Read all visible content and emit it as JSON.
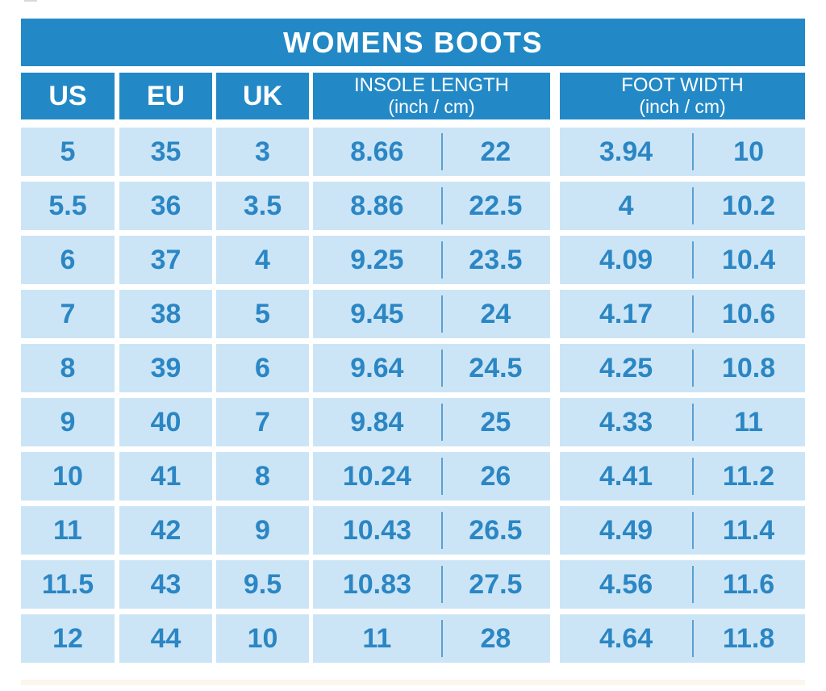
{
  "title": "WOMENS BOOTS",
  "columns": {
    "us": "US",
    "eu": "EU",
    "uk": "UK",
    "insole": {
      "label": "INSOLE LENGTH",
      "unit": "(inch / cm)"
    },
    "foot": {
      "label": "FOOT WIDTH",
      "unit": "(inch / cm)"
    }
  },
  "rows": [
    {
      "us": "5",
      "eu": "35",
      "uk": "3",
      "insole_inch": "8.66",
      "insole_cm": "22",
      "width_inch": "3.94",
      "width_cm": "10"
    },
    {
      "us": "5.5",
      "eu": "36",
      "uk": "3.5",
      "insole_inch": "8.86",
      "insole_cm": "22.5",
      "width_inch": "4",
      "width_cm": "10.2"
    },
    {
      "us": "6",
      "eu": "37",
      "uk": "4",
      "insole_inch": "9.25",
      "insole_cm": "23.5",
      "width_inch": "4.09",
      "width_cm": "10.4"
    },
    {
      "us": "7",
      "eu": "38",
      "uk": "5",
      "insole_inch": "9.45",
      "insole_cm": "24",
      "width_inch": "4.17",
      "width_cm": "10.6"
    },
    {
      "us": "8",
      "eu": "39",
      "uk": "6",
      "insole_inch": "9.64",
      "insole_cm": "24.5",
      "width_inch": "4.25",
      "width_cm": "10.8"
    },
    {
      "us": "9",
      "eu": "40",
      "uk": "7",
      "insole_inch": "9.84",
      "insole_cm": "25",
      "width_inch": "4.33",
      "width_cm": "11"
    },
    {
      "us": "10",
      "eu": "41",
      "uk": "8",
      "insole_inch": "10.24",
      "insole_cm": "26",
      "width_inch": "4.41",
      "width_cm": "11.2"
    },
    {
      "us": "11",
      "eu": "42",
      "uk": "9",
      "insole_inch": "10.43",
      "insole_cm": "26.5",
      "width_inch": "4.49",
      "width_cm": "11.4"
    },
    {
      "us": "11.5",
      "eu": "43",
      "uk": "9.5",
      "insole_inch": "10.83",
      "insole_cm": "27.5",
      "width_inch": "4.56",
      "width_cm": "11.6"
    },
    {
      "us": "12",
      "eu": "44",
      "uk": "10",
      "insole_inch": "11",
      "insole_cm": "28",
      "width_inch": "4.64",
      "width_cm": "11.8"
    }
  ],
  "colors": {
    "header_blue": "#2389c6",
    "cell_blue": "#cbe5f7",
    "text_blue": "#2b86c3",
    "divider_blue": "#5b9fce",
    "background": "#ffffff"
  },
  "chart_data": {
    "type": "table",
    "title": "WOMENS BOOTS",
    "columns": [
      "US",
      "EU",
      "UK",
      "INSOLE LENGTH (inch)",
      "INSOLE LENGTH (cm)",
      "FOOT WIDTH (inch)",
      "FOOT WIDTH (cm)"
    ],
    "rows": [
      [
        5,
        35,
        3,
        8.66,
        22,
        3.94,
        10
      ],
      [
        5.5,
        36,
        3.5,
        8.86,
        22.5,
        4,
        10.2
      ],
      [
        6,
        37,
        4,
        9.25,
        23.5,
        4.09,
        10.4
      ],
      [
        7,
        38,
        5,
        9.45,
        24,
        4.17,
        10.6
      ],
      [
        8,
        39,
        6,
        9.64,
        24.5,
        4.25,
        10.8
      ],
      [
        9,
        40,
        7,
        9.84,
        25,
        4.33,
        11
      ],
      [
        10,
        41,
        8,
        10.24,
        26,
        4.41,
        11.2
      ],
      [
        11,
        42,
        9,
        10.43,
        26.5,
        4.49,
        11.4
      ],
      [
        11.5,
        43,
        9.5,
        10.83,
        27.5,
        4.56,
        11.6
      ],
      [
        12,
        44,
        10,
        11,
        28,
        4.64,
        11.8
      ]
    ]
  }
}
